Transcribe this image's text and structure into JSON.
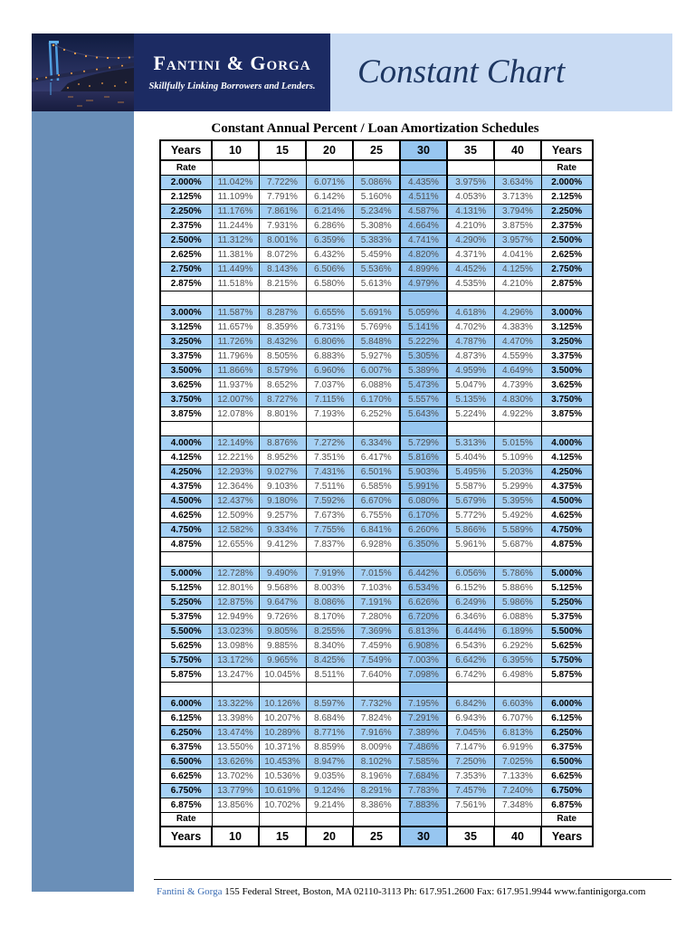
{
  "colors": {
    "navy_box": "#1c2b63",
    "banner_blue": "#c9dbf3",
    "sidebar_blue": "#6a8fb8",
    "row_stripe_blue": "#a6d1f5",
    "highlight_col_blue": "#97c6f0",
    "title_navy": "#1d3661",
    "footer_link_blue": "#3a6cb4"
  },
  "header": {
    "brand_name": "Fantini & Gorga",
    "brand_tagline": "Skillfully Linking Borrowers and Lenders.",
    "banner_title": "Constant Chart",
    "photo_icon": "bridge-night-photo"
  },
  "document": {
    "title": "Constant Annual Percent / Loan Amortization Schedules"
  },
  "table": {
    "col_headers": [
      "Years",
      "10",
      "15",
      "20",
      "25",
      "30",
      "35",
      "40",
      "Years"
    ],
    "rate_label": "Rate",
    "highlight_column": "30",
    "groups": [
      {
        "rows": [
          {
            "rate": "2.000%",
            "values": [
              "11.042%",
              "7.722%",
              "6.071%",
              "5.086%",
              "4.435%",
              "3.975%",
              "3.634%"
            ]
          },
          {
            "rate": "2.125%",
            "values": [
              "11.109%",
              "7.791%",
              "6.142%",
              "5.160%",
              "4.511%",
              "4.053%",
              "3.713%"
            ]
          },
          {
            "rate": "2.250%",
            "values": [
              "11.176%",
              "7.861%",
              "6.214%",
              "5.234%",
              "4.587%",
              "4.131%",
              "3.794%"
            ]
          },
          {
            "rate": "2.375%",
            "values": [
              "11.244%",
              "7.931%",
              "6.286%",
              "5.308%",
              "4.664%",
              "4.210%",
              "3.875%"
            ]
          },
          {
            "rate": "2.500%",
            "values": [
              "11.312%",
              "8.001%",
              "6.359%",
              "5.383%",
              "4.741%",
              "4.290%",
              "3.957%"
            ]
          },
          {
            "rate": "2.625%",
            "values": [
              "11.381%",
              "8.072%",
              "6.432%",
              "5.459%",
              "4.820%",
              "4.371%",
              "4.041%"
            ]
          },
          {
            "rate": "2.750%",
            "values": [
              "11.449%",
              "8.143%",
              "6.506%",
              "5.536%",
              "4.899%",
              "4.452%",
              "4.125%"
            ]
          },
          {
            "rate": "2.875%",
            "values": [
              "11.518%",
              "8.215%",
              "6.580%",
              "5.613%",
              "4.979%",
              "4.535%",
              "4.210%"
            ]
          }
        ]
      },
      {
        "rows": [
          {
            "rate": "3.000%",
            "values": [
              "11.587%",
              "8.287%",
              "6.655%",
              "5.691%",
              "5.059%",
              "4.618%",
              "4.296%"
            ]
          },
          {
            "rate": "3.125%",
            "values": [
              "11.657%",
              "8.359%",
              "6.731%",
              "5.769%",
              "5.141%",
              "4.702%",
              "4.383%"
            ]
          },
          {
            "rate": "3.250%",
            "values": [
              "11.726%",
              "8.432%",
              "6.806%",
              "5.848%",
              "5.222%",
              "4.787%",
              "4.470%"
            ]
          },
          {
            "rate": "3.375%",
            "values": [
              "11.796%",
              "8.505%",
              "6.883%",
              "5.927%",
              "5.305%",
              "4.873%",
              "4.559%"
            ]
          },
          {
            "rate": "3.500%",
            "values": [
              "11.866%",
              "8.579%",
              "6.960%",
              "6.007%",
              "5.389%",
              "4.959%",
              "4.649%"
            ]
          },
          {
            "rate": "3.625%",
            "values": [
              "11.937%",
              "8.652%",
              "7.037%",
              "6.088%",
              "5.473%",
              "5.047%",
              "4.739%"
            ]
          },
          {
            "rate": "3.750%",
            "values": [
              "12.007%",
              "8.727%",
              "7.115%",
              "6.170%",
              "5.557%",
              "5.135%",
              "4.830%"
            ]
          },
          {
            "rate": "3.875%",
            "values": [
              "12.078%",
              "8.801%",
              "7.193%",
              "6.252%",
              "5.643%",
              "5.224%",
              "4.922%"
            ]
          }
        ]
      },
      {
        "rows": [
          {
            "rate": "4.000%",
            "values": [
              "12.149%",
              "8.876%",
              "7.272%",
              "6.334%",
              "5.729%",
              "5.313%",
              "5.015%"
            ]
          },
          {
            "rate": "4.125%",
            "values": [
              "12.221%",
              "8.952%",
              "7.351%",
              "6.417%",
              "5.816%",
              "5.404%",
              "5.109%"
            ]
          },
          {
            "rate": "4.250%",
            "values": [
              "12.293%",
              "9.027%",
              "7.431%",
              "6.501%",
              "5.903%",
              "5.495%",
              "5.203%"
            ]
          },
          {
            "rate": "4.375%",
            "values": [
              "12.364%",
              "9.103%",
              "7.511%",
              "6.585%",
              "5.991%",
              "5.587%",
              "5.299%"
            ]
          },
          {
            "rate": "4.500%",
            "values": [
              "12.437%",
              "9.180%",
              "7.592%",
              "6.670%",
              "6.080%",
              "5.679%",
              "5.395%"
            ]
          },
          {
            "rate": "4.625%",
            "values": [
              "12.509%",
              "9.257%",
              "7.673%",
              "6.755%",
              "6.170%",
              "5.772%",
              "5.492%"
            ]
          },
          {
            "rate": "4.750%",
            "values": [
              "12.582%",
              "9.334%",
              "7.755%",
              "6.841%",
              "6.260%",
              "5.866%",
              "5.589%"
            ]
          },
          {
            "rate": "4.875%",
            "values": [
              "12.655%",
              "9.412%",
              "7.837%",
              "6.928%",
              "6.350%",
              "5.961%",
              "5.687%"
            ]
          }
        ]
      },
      {
        "rows": [
          {
            "rate": "5.000%",
            "values": [
              "12.728%",
              "9.490%",
              "7.919%",
              "7.015%",
              "6.442%",
              "6.056%",
              "5.786%"
            ]
          },
          {
            "rate": "5.125%",
            "values": [
              "12.801%",
              "9.568%",
              "8.003%",
              "7.103%",
              "6.534%",
              "6.152%",
              "5.886%"
            ]
          },
          {
            "rate": "5.250%",
            "values": [
              "12.875%",
              "9.647%",
              "8.086%",
              "7.191%",
              "6.626%",
              "6.249%",
              "5.986%"
            ]
          },
          {
            "rate": "5.375%",
            "values": [
              "12.949%",
              "9.726%",
              "8.170%",
              "7.280%",
              "6.720%",
              "6.346%",
              "6.088%"
            ]
          },
          {
            "rate": "5.500%",
            "values": [
              "13.023%",
              "9.805%",
              "8.255%",
              "7.369%",
              "6.813%",
              "6.444%",
              "6.189%"
            ]
          },
          {
            "rate": "5.625%",
            "values": [
              "13.098%",
              "9.885%",
              "8.340%",
              "7.459%",
              "6.908%",
              "6.543%",
              "6.292%"
            ]
          },
          {
            "rate": "5.750%",
            "values": [
              "13.172%",
              "9.965%",
              "8.425%",
              "7.549%",
              "7.003%",
              "6.642%",
              "6.395%"
            ]
          },
          {
            "rate": "5.875%",
            "values": [
              "13.247%",
              "10.045%",
              "8.511%",
              "7.640%",
              "7.098%",
              "6.742%",
              "6.498%"
            ]
          }
        ]
      },
      {
        "rows": [
          {
            "rate": "6.000%",
            "values": [
              "13.322%",
              "10.126%",
              "8.597%",
              "7.732%",
              "7.195%",
              "6.842%",
              "6.603%"
            ]
          },
          {
            "rate": "6.125%",
            "values": [
              "13.398%",
              "10.207%",
              "8.684%",
              "7.824%",
              "7.291%",
              "6.943%",
              "6.707%"
            ]
          },
          {
            "rate": "6.250%",
            "values": [
              "13.474%",
              "10.289%",
              "8.771%",
              "7.916%",
              "7.389%",
              "7.045%",
              "6.813%"
            ]
          },
          {
            "rate": "6.375%",
            "values": [
              "13.550%",
              "10.371%",
              "8.859%",
              "8.009%",
              "7.486%",
              "7.147%",
              "6.919%"
            ]
          },
          {
            "rate": "6.500%",
            "values": [
              "13.626%",
              "10.453%",
              "8.947%",
              "8.102%",
              "7.585%",
              "7.250%",
              "7.025%"
            ]
          },
          {
            "rate": "6.625%",
            "values": [
              "13.702%",
              "10.536%",
              "9.035%",
              "8.196%",
              "7.684%",
              "7.353%",
              "7.133%"
            ]
          },
          {
            "rate": "6.750%",
            "values": [
              "13.779%",
              "10.619%",
              "9.124%",
              "8.291%",
              "7.783%",
              "7.457%",
              "7.240%"
            ]
          },
          {
            "rate": "6.875%",
            "values": [
              "13.856%",
              "10.702%",
              "9.214%",
              "8.386%",
              "7.883%",
              "7.561%",
              "7.348%"
            ]
          }
        ]
      }
    ]
  },
  "footer": {
    "brand": "Fantini & Gorga",
    "address": "155 Federal Street, Boston, MA 02110-3113  Ph: 617.951.2600  Fax: 617.951.9944  www.fantinigorga.com"
  }
}
